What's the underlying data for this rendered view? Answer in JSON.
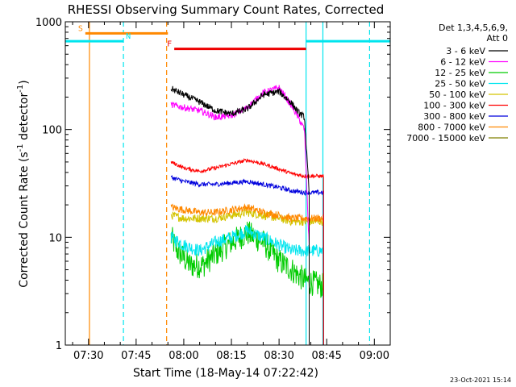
{
  "chart_data": {
    "type": "line",
    "title": "RHESSI Observing Summary Count Rates, Corrected",
    "xlabel": "Start Time (18-May-14 07:22:42)",
    "ylabel_main": "Corrected Count Rate (s",
    "ylabel_sup": "-1",
    "ylabel_tail": " detector",
    "ylabel_sup2": "-1",
    "ylabel_end": ")",
    "footer_date": "23-Oct-2021 15:14",
    "yscale": "log",
    "ylim": [
      1,
      1000
    ],
    "xlim_minutes": [
      442.7,
      545
    ],
    "x_ticks": [
      {
        "t": 450,
        "label": "07:30"
      },
      {
        "t": 465,
        "label": "07:45"
      },
      {
        "t": 480,
        "label": "08:00"
      },
      {
        "t": 495,
        "label": "08:15"
      },
      {
        "t": 510,
        "label": "08:30"
      },
      {
        "t": 525,
        "label": "08:45"
      },
      {
        "t": 540,
        "label": "09:00"
      }
    ],
    "y_ticks": [
      {
        "v": 1,
        "label": "1"
      },
      {
        "v": 10,
        "label": "10"
      },
      {
        "v": 100,
        "label": "100"
      },
      {
        "v": 1000,
        "label": "1000"
      }
    ],
    "legend": {
      "header1": "Det 1,3,4,5,6,9,",
      "header2": "Att 0",
      "placement": "right"
    },
    "series": [
      {
        "name": "3 - 6 keV",
        "color": "#000000",
        "x": [
          476,
          480,
          485,
          490,
          495,
          500,
          505,
          510,
          514,
          516,
          518,
          519.5
        ],
        "values": [
          240,
          210,
          180,
          150,
          140,
          155,
          210,
          225,
          175,
          145,
          130,
          25
        ]
      },
      {
        "name": "6 - 12 keV",
        "color": "#ff00ff",
        "x": [
          476,
          480,
          485,
          490,
          495,
          500,
          505,
          510,
          514,
          516,
          518,
          519.5
        ],
        "values": [
          170,
          160,
          150,
          130,
          135,
          160,
          220,
          245,
          165,
          130,
          100,
          8
        ]
      },
      {
        "name": "12 - 25 keV",
        "color": "#00cc00",
        "x": [
          476,
          478,
          482,
          486,
          490,
          495,
          500,
          505,
          510,
          514,
          518,
          524
        ],
        "values": [
          10,
          7.5,
          5.5,
          5.5,
          7,
          9,
          11,
          9,
          6,
          5,
          4,
          3.5
        ]
      },
      {
        "name": "25 - 50 keV",
        "color": "#00e5ee",
        "x": [
          476,
          480,
          485,
          490,
          495,
          500,
          505,
          510,
          514,
          518,
          524
        ],
        "values": [
          10,
          8.5,
          7.5,
          9,
          10,
          11.5,
          10,
          8.5,
          7.5,
          7.5,
          7.5
        ]
      },
      {
        "name": "50 - 100 keV",
        "color": "#d4c400",
        "x": [
          476,
          480,
          485,
          490,
          495,
          500,
          505,
          510,
          514,
          518,
          524
        ],
        "values": [
          16,
          15,
          15,
          15,
          16,
          17,
          16,
          15,
          14,
          14,
          14
        ]
      },
      {
        "name": "100 - 300 keV",
        "color": "#ff0000",
        "x": [
          476,
          480,
          485,
          490,
          495,
          500,
          505,
          510,
          514,
          518,
          524
        ],
        "values": [
          50,
          44,
          41,
          44,
          48,
          52,
          48,
          43,
          39,
          37,
          37
        ]
      },
      {
        "name": "300 - 800 keV",
        "color": "#0000dd",
        "x": [
          476,
          480,
          485,
          490,
          495,
          500,
          505,
          510,
          514,
          518,
          524
        ],
        "values": [
          36,
          33,
          31,
          31,
          32,
          33,
          31,
          29,
          27,
          26,
          26
        ]
      },
      {
        "name": "800 - 7000 keV",
        "color": "#ff8800",
        "x": [
          476,
          480,
          485,
          490,
          495,
          500,
          505,
          510,
          514,
          518,
          524
        ],
        "values": [
          19,
          18,
          17,
          17,
          18,
          19,
          17,
          16,
          15,
          15,
          15
        ]
      },
      {
        "name": "7000 - 15000 keV",
        "color": "#808000",
        "x": [],
        "values": []
      }
    ],
    "state_bars": [
      {
        "label": "S",
        "color": "#ff8800",
        "t0": 449,
        "t1": 475,
        "level": 780
      },
      {
        "label": "N",
        "color": "#00e5ee",
        "t0": 442.7,
        "t1": 461,
        "level": 660
      },
      {
        "label": "N",
        "color": "#00e5ee",
        "t0": 518.5,
        "t1": 545,
        "level": 660
      },
      {
        "label": "F",
        "color": "#ee0000",
        "t0": 477,
        "t1": 518.5,
        "level": 560
      }
    ],
    "vlines": [
      {
        "t": 450.3,
        "color": "#ff8800",
        "dashed": false
      },
      {
        "t": 461.0,
        "color": "#00e5ee",
        "dashed": true
      },
      {
        "t": 474.6,
        "color": "#ff8800",
        "dashed": true
      },
      {
        "t": 518.5,
        "color": "#00e5ee",
        "dashed": false
      },
      {
        "t": 523.8,
        "color": "#00e5ee",
        "dashed": false
      },
      {
        "t": 538.5,
        "color": "#00e5ee",
        "dashed": true
      }
    ]
  }
}
